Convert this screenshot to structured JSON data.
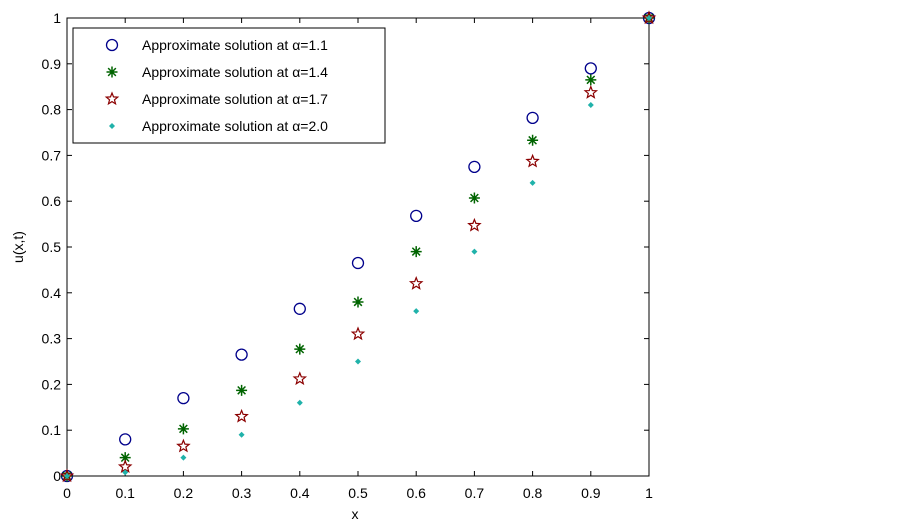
{
  "chart_data": {
    "type": "scatter",
    "title": "",
    "xlabel": "x",
    "ylabel": "u(x,t)",
    "xlim": [
      0,
      1
    ],
    "ylim": [
      0,
      1
    ],
    "grid": false,
    "legend_position": "top-left",
    "x_ticks": [
      "0",
      "0.1",
      "0.2",
      "0.3",
      "0.4",
      "0.5",
      "0.6",
      "0.7",
      "0.8",
      "0.9",
      "1"
    ],
    "y_ticks": [
      "0",
      "0.1",
      "0.2",
      "0.3",
      "0.4",
      "0.5",
      "0.6",
      "0.7",
      "0.8",
      "0.9",
      "1"
    ],
    "x": [
      0,
      0.1,
      0.2,
      0.3,
      0.4,
      0.5,
      0.6,
      0.7,
      0.8,
      0.9,
      1.0
    ],
    "series": [
      {
        "name": "Approximate solution at α=1.1",
        "marker": "circle",
        "color": "#00008B",
        "values": [
          0,
          0.08,
          0.17,
          0.265,
          0.365,
          0.465,
          0.568,
          0.675,
          0.782,
          0.89,
          1.0
        ]
      },
      {
        "name": "Approximate solution at α=1.4",
        "marker": "asterisk",
        "color": "#006400",
        "values": [
          0,
          0.04,
          0.103,
          0.187,
          0.277,
          0.38,
          0.49,
          0.607,
          0.733,
          0.865,
          1.0
        ]
      },
      {
        "name": "Approximate solution at α=1.7",
        "marker": "star",
        "color": "#8B0000",
        "values": [
          0,
          0.02,
          0.065,
          0.13,
          0.212,
          0.31,
          0.42,
          0.547,
          0.687,
          0.837,
          1.0
        ]
      },
      {
        "name": "Approximate solution at α=2.0",
        "marker": "dot",
        "color": "#20B2AA",
        "values": [
          0,
          0.008,
          0.04,
          0.09,
          0.16,
          0.25,
          0.36,
          0.49,
          0.64,
          0.81,
          1.0
        ]
      }
    ]
  }
}
